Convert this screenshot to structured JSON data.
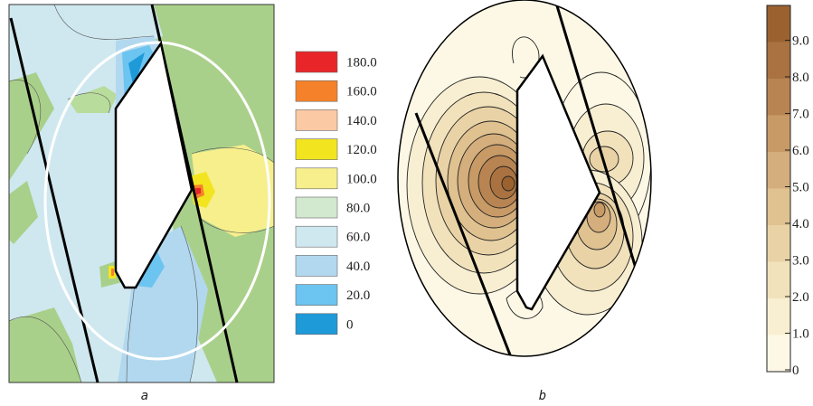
{
  "panel_a": {
    "caption": "a",
    "legend": [
      {
        "label": "180.0",
        "color": "#e8262a"
      },
      {
        "label": "160.0",
        "color": "#f5822a"
      },
      {
        "label": "140.0",
        "color": "#fbc9a4"
      },
      {
        "label": "120.0",
        "color": "#f2e520"
      },
      {
        "label": "100.0",
        "color": "#f6ef8c"
      },
      {
        "label": "80.0",
        "color": "#d2e8cf"
      },
      {
        "label": "60.0",
        "color": "#cfe8ef"
      },
      {
        "label": "40.0",
        "color": "#b2d8ef"
      },
      {
        "label": "20.0",
        "color": "#6cc4f0"
      },
      {
        "label": "0",
        "color": "#1e9ad8"
      }
    ]
  },
  "panel_b": {
    "caption": "b",
    "colorbar_ticks": [
      "9.0",
      "8.0",
      "7.0",
      "6.0",
      "5.0",
      "4.0",
      "3.0",
      "2.0",
      "1.0",
      "0"
    ],
    "colorbar_colors": [
      "#9b6230",
      "#a97240",
      "#b88452",
      "#c79a66",
      "#d4ae7c",
      "#dfc290",
      "#e9d3a6",
      "#f1e2bc",
      "#f8efd2",
      "#fdf8e6"
    ]
  }
}
